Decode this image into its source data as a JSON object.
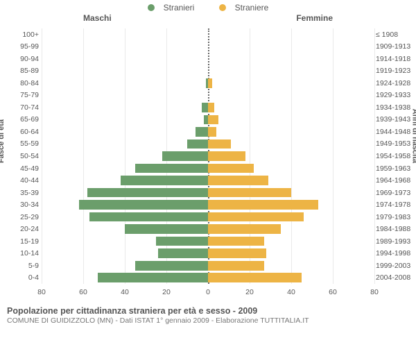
{
  "chart": {
    "type": "population-pyramid",
    "legend": [
      {
        "label": "Stranieri",
        "color": "#6b9e6b"
      },
      {
        "label": "Straniere",
        "color": "#edb445"
      }
    ],
    "header_left": "Maschi",
    "header_right": "Femmine",
    "y_left_title": "Fasce di età",
    "y_right_title": "Anni di nascita",
    "x_ticks": [
      80,
      60,
      40,
      20,
      0,
      20,
      40,
      60,
      80
    ],
    "x_max": 80,
    "background_color": "#ffffff",
    "grid_color": "#e9e9e9",
    "zero_line_color": "#666666",
    "font_color": "#555555",
    "label_fontsize": 10.5,
    "title_fontsize": 12.5,
    "rows": [
      {
        "age": "100+",
        "birth": "≤ 1908",
        "m": 0,
        "f": 0
      },
      {
        "age": "95-99",
        "birth": "1909-1913",
        "m": 0,
        "f": 0
      },
      {
        "age": "90-94",
        "birth": "1914-1918",
        "m": 0,
        "f": 0
      },
      {
        "age": "85-89",
        "birth": "1919-1923",
        "m": 0,
        "f": 0
      },
      {
        "age": "80-84",
        "birth": "1924-1928",
        "m": 1,
        "f": 2
      },
      {
        "age": "75-79",
        "birth": "1929-1933",
        "m": 0,
        "f": 0
      },
      {
        "age": "70-74",
        "birth": "1934-1938",
        "m": 3,
        "f": 3
      },
      {
        "age": "65-69",
        "birth": "1939-1943",
        "m": 2,
        "f": 5
      },
      {
        "age": "60-64",
        "birth": "1944-1948",
        "m": 6,
        "f": 4
      },
      {
        "age": "55-59",
        "birth": "1949-1953",
        "m": 10,
        "f": 11
      },
      {
        "age": "50-54",
        "birth": "1954-1958",
        "m": 22,
        "f": 18
      },
      {
        "age": "45-49",
        "birth": "1959-1963",
        "m": 35,
        "f": 22
      },
      {
        "age": "40-44",
        "birth": "1964-1968",
        "m": 42,
        "f": 29
      },
      {
        "age": "35-39",
        "birth": "1969-1973",
        "m": 58,
        "f": 40
      },
      {
        "age": "30-34",
        "birth": "1974-1978",
        "m": 62,
        "f": 53
      },
      {
        "age": "25-29",
        "birth": "1979-1983",
        "m": 57,
        "f": 46
      },
      {
        "age": "20-24",
        "birth": "1984-1988",
        "m": 40,
        "f": 35
      },
      {
        "age": "15-19",
        "birth": "1989-1993",
        "m": 25,
        "f": 27
      },
      {
        "age": "10-14",
        "birth": "1994-1998",
        "m": 24,
        "f": 28
      },
      {
        "age": "5-9",
        "birth": "1999-2003",
        "m": 35,
        "f": 27
      },
      {
        "age": "0-4",
        "birth": "2004-2008",
        "m": 53,
        "f": 45
      }
    ],
    "caption_title": "Popolazione per cittadinanza straniera per età e sesso - 2009",
    "caption_sub": "COMUNE DI GUIDIZZOLO (MN) - Dati ISTAT 1° gennaio 2009 - Elaborazione TUTTITALIA.IT"
  }
}
